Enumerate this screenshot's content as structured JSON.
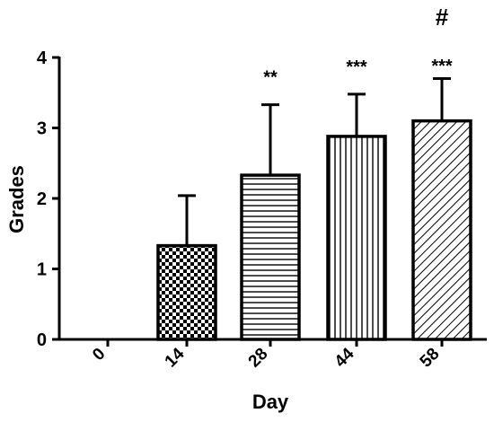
{
  "chart_data": {
    "type": "bar",
    "xlabel": "Day",
    "ylabel": "Grades",
    "ylim": [
      0,
      4
    ],
    "yticks": [
      "0",
      "1",
      "2",
      "3",
      "4"
    ],
    "grid": false,
    "legend": "none",
    "categories": [
      "0",
      "14",
      "28",
      "44",
      "58"
    ],
    "values": [
      0,
      1.33,
      2.33,
      2.88,
      3.1
    ],
    "error_plus": [
      0,
      0.71,
      1.0,
      0.6,
      0.6
    ],
    "patterns": [
      "none",
      "checkerboard",
      "horizontal-lines",
      "vertical-lines",
      "diagonal-lines"
    ],
    "significance": [
      "",
      "",
      "**",
      "***",
      "***"
    ],
    "annotations": [
      {
        "category": "58",
        "text": "#"
      }
    ],
    "colors": {
      "bar_stroke": "#000000",
      "pattern": "#000000",
      "background": "#ffffff"
    }
  }
}
